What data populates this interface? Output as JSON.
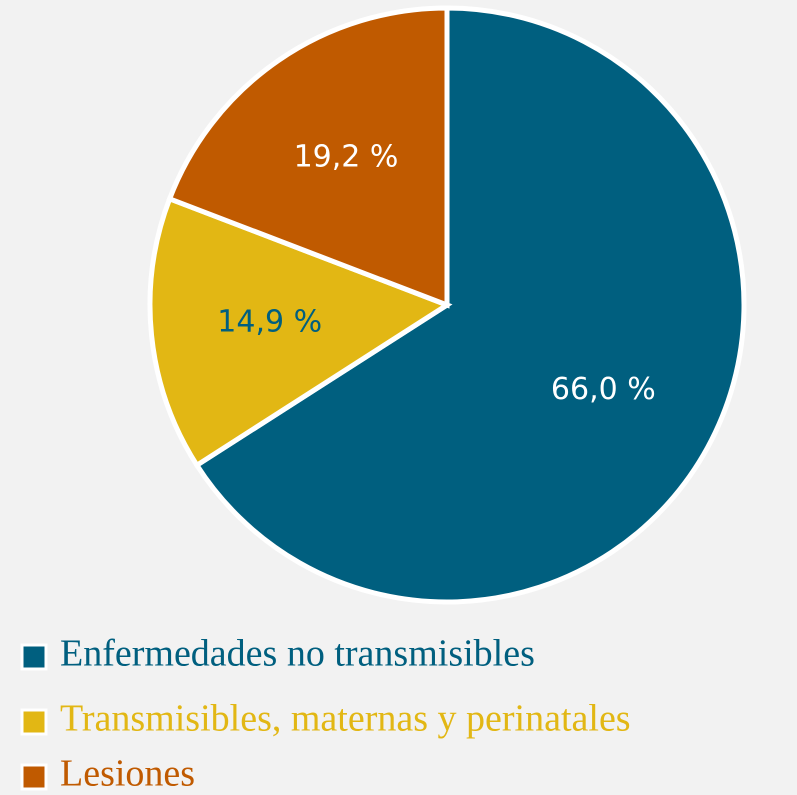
{
  "chart_data": {
    "type": "pie",
    "categories": [
      "Enfermedades no transmisibles",
      "Transmisibles, maternas y perinatales",
      "Lesiones"
    ],
    "values": [
      66.0,
      14.9,
      19.2
    ],
    "value_labels": [
      "66,0 %",
      "14,9 %",
      "19,2 %"
    ],
    "colors": [
      "#005f7f",
      "#e2b714",
      "#c05a00"
    ],
    "label_colors": [
      "#ffffff",
      "#005f7f",
      "#ffffff"
    ]
  }
}
